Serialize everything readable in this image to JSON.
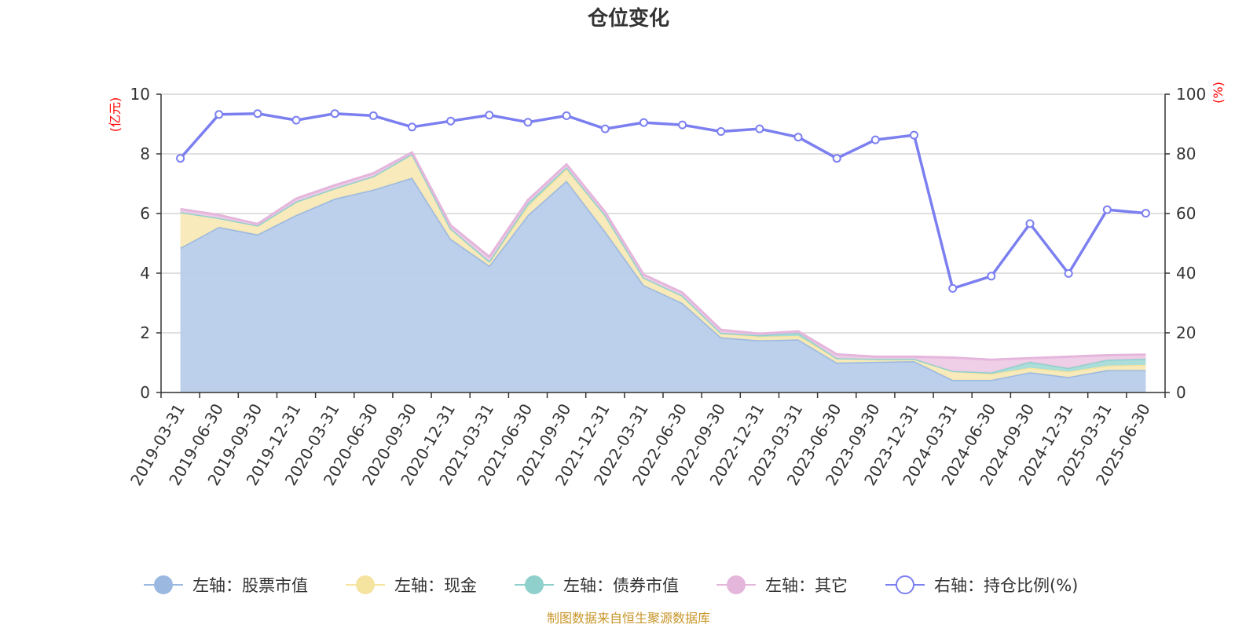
{
  "chart_data": {
    "type": "area",
    "title": "仓位变化",
    "source": "制图数据来自恒生聚源数据库",
    "left_axis": {
      "unit": "(亿元)",
      "min": 0,
      "max": 10,
      "ticks": [
        "0",
        "2",
        "4",
        "6",
        "8",
        "10"
      ]
    },
    "right_axis": {
      "unit": "(%)",
      "min": 0,
      "max": 100,
      "ticks": [
        "0",
        "20",
        "40",
        "60",
        "80",
        "100"
      ]
    },
    "categories": [
      "2019-03-31",
      "2019-06-30",
      "2019-09-30",
      "2019-12-31",
      "2020-03-31",
      "2020-06-30",
      "2020-09-30",
      "2020-12-31",
      "2021-03-31",
      "2021-06-30",
      "2021-09-30",
      "2021-12-31",
      "2022-03-31",
      "2022-06-30",
      "2022-09-30",
      "2022-12-31",
      "2023-03-31",
      "2023-06-30",
      "2023-09-30",
      "2023-12-31",
      "2024-03-31",
      "2024-06-30",
      "2024-09-30",
      "2024-12-31",
      "2025-03-31",
      "2025-06-30"
    ],
    "stacked_series": [
      {
        "name": "左轴：股票市值",
        "color": "#9ab8e0",
        "fill": "#b8cdea",
        "values": [
          4.85,
          5.55,
          5.3,
          5.95,
          6.5,
          6.8,
          7.2,
          5.15,
          4.25,
          5.95,
          7.1,
          5.4,
          3.6,
          3.0,
          1.85,
          1.75,
          1.78,
          1.0,
          1.03,
          1.05,
          0.42,
          0.42,
          0.68,
          0.52,
          0.75,
          0.75
        ]
      },
      {
        "name": "左轴：现金",
        "color": "#f5e3a0",
        "fill": "#f8e9b6",
        "values": [
          1.2,
          0.3,
          0.3,
          0.45,
          0.35,
          0.45,
          0.8,
          0.35,
          0.15,
          0.3,
          0.4,
          0.55,
          0.25,
          0.25,
          0.15,
          0.12,
          0.12,
          0.15,
          0.1,
          0.08,
          0.3,
          0.2,
          0.15,
          0.18,
          0.15,
          0.18
        ]
      },
      {
        "name": "左轴：债券市值",
        "color": "#8fd0cc",
        "fill": "#a7dcd8",
        "values": [
          0,
          0,
          0,
          0,
          0,
          0,
          0,
          0,
          0,
          0.1,
          0.05,
          0,
          0,
          0,
          0,
          0.05,
          0.1,
          0,
          0,
          0,
          0,
          0.05,
          0.2,
          0.12,
          0.2,
          0.2
        ]
      },
      {
        "name": "左轴：其它",
        "color": "#e5b6dc",
        "fill": "#eecbe6",
        "values": [
          0.1,
          0.1,
          0.05,
          0.1,
          0.1,
          0.1,
          0.05,
          0.1,
          0.15,
          0.1,
          0.1,
          0.1,
          0.1,
          0.1,
          0.1,
          0.05,
          0.05,
          0.13,
          0.07,
          0.07,
          0.45,
          0.43,
          0.12,
          0.38,
          0.15,
          0.14
        ]
      }
    ],
    "line_series": {
      "name": "右轴：持仓比例(%)",
      "color": "#7b7ff0",
      "axis": "right",
      "values": [
        78.5,
        93.2,
        93.5,
        91.3,
        93.5,
        92.8,
        89.0,
        91.0,
        93.0,
        90.6,
        92.8,
        88.4,
        90.5,
        89.7,
        87.5,
        88.4,
        85.6,
        78.5,
        84.7,
        86.3,
        34.9,
        39.0,
        56.6,
        39.9,
        61.3,
        60.1
      ]
    },
    "legend": [
      {
        "label": "左轴：股票市值",
        "color": "#9ab8e0",
        "marker": "filled"
      },
      {
        "label": "左轴：现金",
        "color": "#f5e3a0",
        "marker": "filled"
      },
      {
        "label": "左轴：债券市值",
        "color": "#8fd0cc",
        "marker": "filled"
      },
      {
        "label": "左轴：其它",
        "color": "#e5b6dc",
        "marker": "filled"
      },
      {
        "label": "右轴：持仓比例(%)",
        "color": "#7b7ff0",
        "marker": "hollow"
      }
    ],
    "grid": true,
    "legend_position": "bottom-center"
  }
}
